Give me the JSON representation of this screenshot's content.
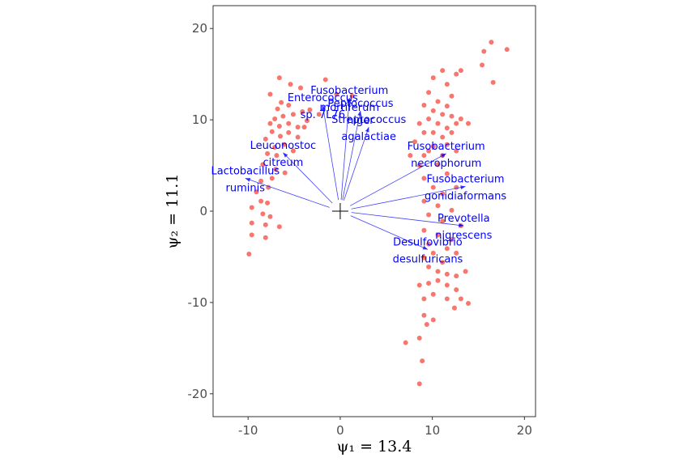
{
  "chart_data": {
    "type": "scatter",
    "title": "",
    "xlabel": "ψ₁ = 13.4",
    "ylabel": "ψ₂ = 11.1",
    "xlim": [
      -13.8,
      21.2
    ],
    "ylim": [
      -22.5,
      22.5
    ],
    "x_ticks": [
      -10,
      0,
      10,
      20
    ],
    "y_ticks": [
      -20,
      -10,
      0,
      10,
      20
    ],
    "x_tick_labels": [
      "-10",
      "0",
      "10",
      "20"
    ],
    "y_tick_labels": [
      "-20",
      "-10",
      "0",
      "10",
      "20"
    ],
    "grid": false,
    "legend": "none",
    "point_color": "#F8766D",
    "arrow_color": "#0000FF",
    "origin_marker": [
      0,
      0
    ],
    "points": [
      [
        -6.6,
        14.6
      ],
      [
        -5.4,
        13.9
      ],
      [
        -4.3,
        13.5
      ],
      [
        -7.6,
        12.8
      ],
      [
        -6.4,
        11.9
      ],
      [
        -5.6,
        11.6
      ],
      [
        -6.8,
        11.2
      ],
      [
        -6.2,
        10.4
      ],
      [
        -7.1,
        10.1
      ],
      [
        -5.1,
        10.6
      ],
      [
        -4.1,
        10.9
      ],
      [
        -3.3,
        11.1
      ],
      [
        -3.6,
        9.9
      ],
      [
        -4.6,
        9.2
      ],
      [
        -5.6,
        9.6
      ],
      [
        -6.6,
        9.3
      ],
      [
        -7.6,
        9.6
      ],
      [
        -3.9,
        9.2
      ],
      [
        -4.6,
        8.1
      ],
      [
        -5.6,
        8.6
      ],
      [
        -6.5,
        8.2
      ],
      [
        -7.4,
        8.7
      ],
      [
        -8.1,
        7.9
      ],
      [
        -7.1,
        7.0
      ],
      [
        -6.1,
        7.3
      ],
      [
        -5.1,
        6.6
      ],
      [
        -6.9,
        6.1
      ],
      [
        -7.9,
        6.3
      ],
      [
        -8.4,
        5.1
      ],
      [
        -7.0,
        4.6
      ],
      [
        -6.0,
        4.2
      ],
      [
        -7.4,
        3.6
      ],
      [
        -8.6,
        3.3
      ],
      [
        -9.1,
        2.1
      ],
      [
        -7.8,
        2.6
      ],
      [
        -8.6,
        1.1
      ],
      [
        -7.9,
        0.9
      ],
      [
        -9.6,
        0.4
      ],
      [
        -8.4,
        -0.3
      ],
      [
        -7.6,
        -0.6
      ],
      [
        -9.6,
        -1.3
      ],
      [
        -8.1,
        -1.5
      ],
      [
        -6.6,
        -1.7
      ],
      [
        -9.6,
        -2.6
      ],
      [
        -8.1,
        -2.9
      ],
      [
        -9.9,
        -4.7
      ],
      [
        -2.3,
        10.6
      ],
      [
        -1.6,
        14.4
      ],
      [
        1.3,
        12.6
      ],
      [
        -0.4,
        12.8
      ],
      [
        16.4,
        18.5
      ],
      [
        15.6,
        17.5
      ],
      [
        18.1,
        17.7
      ],
      [
        15.4,
        16.0
      ],
      [
        16.6,
        14.1
      ],
      [
        11.1,
        15.4
      ],
      [
        12.6,
        15.0
      ],
      [
        13.1,
        15.4
      ],
      [
        10.1,
        14.6
      ],
      [
        11.6,
        13.9
      ],
      [
        12.1,
        12.6
      ],
      [
        9.6,
        13.0
      ],
      [
        10.6,
        12.0
      ],
      [
        11.6,
        11.5
      ],
      [
        9.1,
        11.6
      ],
      [
        10.1,
        11.0
      ],
      [
        11.1,
        10.6
      ],
      [
        12.1,
        10.4
      ],
      [
        13.1,
        10.1
      ],
      [
        9.6,
        10.1
      ],
      [
        10.6,
        9.6
      ],
      [
        11.6,
        9.1
      ],
      [
        12.6,
        9.6
      ],
      [
        13.9,
        9.6
      ],
      [
        8.6,
        9.6
      ],
      [
        10.1,
        8.6
      ],
      [
        11.1,
        8.1
      ],
      [
        12.1,
        8.6
      ],
      [
        9.1,
        8.6
      ],
      [
        11.6,
        7.3
      ],
      [
        10.1,
        7.1
      ],
      [
        8.1,
        7.6
      ],
      [
        9.6,
        6.6
      ],
      [
        11.1,
        6.1
      ],
      [
        12.6,
        6.6
      ],
      [
        7.6,
        6.1
      ],
      [
        9.1,
        6.1
      ],
      [
        8.6,
        5.0
      ],
      [
        10.6,
        5.1
      ],
      [
        11.6,
        4.1
      ],
      [
        9.1,
        3.6
      ],
      [
        10.1,
        2.6
      ],
      [
        12.6,
        2.6
      ],
      [
        11.1,
        1.9
      ],
      [
        9.1,
        1.1
      ],
      [
        10.6,
        0.6
      ],
      [
        12.1,
        0.1
      ],
      [
        9.6,
        -0.4
      ],
      [
        11.1,
        -1.1
      ],
      [
        13.1,
        -1.6
      ],
      [
        9.1,
        -2.1
      ],
      [
        10.6,
        -2.6
      ],
      [
        12.1,
        -3.1
      ],
      [
        9.6,
        -3.6
      ],
      [
        11.6,
        -4.1
      ],
      [
        10.1,
        -4.6
      ],
      [
        12.6,
        -4.6
      ],
      [
        9.1,
        -5.1
      ],
      [
        11.1,
        -5.6
      ],
      [
        9.6,
        -6.1
      ],
      [
        10.6,
        -6.6
      ],
      [
        11.6,
        -6.9
      ],
      [
        12.6,
        -7.1
      ],
      [
        13.6,
        -6.6
      ],
      [
        8.6,
        -8.1
      ],
      [
        9.6,
        -7.9
      ],
      [
        10.6,
        -7.6
      ],
      [
        11.6,
        -8.1
      ],
      [
        12.6,
        -8.6
      ],
      [
        13.1,
        -9.6
      ],
      [
        11.6,
        -9.6
      ],
      [
        10.1,
        -9.1
      ],
      [
        9.1,
        -9.6
      ],
      [
        13.9,
        -10.1
      ],
      [
        12.4,
        -10.6
      ],
      [
        9.1,
        -11.4
      ],
      [
        10.1,
        -11.9
      ],
      [
        9.4,
        -12.4
      ],
      [
        8.6,
        -13.9
      ],
      [
        7.1,
        -14.4
      ],
      [
        8.9,
        -16.4
      ],
      [
        8.6,
        -18.9
      ]
    ],
    "loadings": [
      {
        "label": [
          "Lactobacillus",
          "ruminis"
        ],
        "x": -10.3,
        "y": 3.6
      },
      {
        "label": [
          "Leuconostoc",
          "citreum"
        ],
        "x": -6.2,
        "y": 6.4
      },
      {
        "label": [
          "Enterococcus",
          "sp. 7L76"
        ],
        "x": -1.9,
        "y": 11.6
      },
      {
        "label": [
          "Fusobacterium",
          "mortiferum"
        ],
        "x": 1.0,
        "y": 12.4
      },
      {
        "label": [
          "Peptococcus",
          "niger"
        ],
        "x": 2.2,
        "y": 11.0
      },
      {
        "label": [
          "Streptococcus",
          "agalactiae"
        ],
        "x": 3.1,
        "y": 9.2
      },
      {
        "label": [
          "Fusobacterium",
          "necrophorum"
        ],
        "x": 11.5,
        "y": 6.3
      },
      {
        "label": [
          "Fusobacterium",
          "gonidiaformans"
        ],
        "x": 13.6,
        "y": 2.7
      },
      {
        "label": [
          "Prevotella",
          "nigrescens"
        ],
        "x": 13.4,
        "y": -1.6
      },
      {
        "label": [
          "Desulfovibrio",
          "desulfuricans"
        ],
        "x": 9.5,
        "y": -4.2
      }
    ]
  }
}
